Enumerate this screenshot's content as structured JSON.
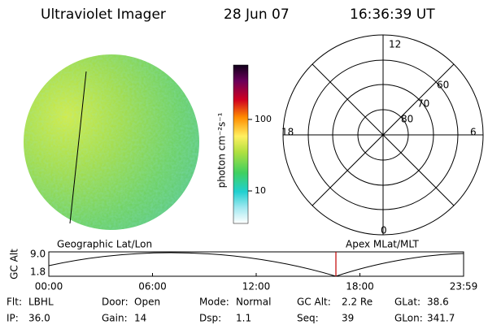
{
  "header": {
    "instrument": "Ultraviolet Imager",
    "date": "28 Jun 07",
    "time": "16:36:39 UT"
  },
  "colorbar": {
    "label": "photon cm⁻²s⁻¹",
    "ticks": [
      "100",
      "10"
    ]
  },
  "polar": {
    "mlt_labels": [
      "12",
      "6",
      "0",
      "18"
    ],
    "latitude_labels": [
      "60",
      "70",
      "80"
    ]
  },
  "panel_labels": {
    "left": "Geographic Lat/Lon",
    "right": "Apex MLat/MLT"
  },
  "altitude_plot": {
    "axis_label": "GC Alt",
    "yticks": [
      "9.0",
      "1.8"
    ],
    "xticks": [
      "00:00",
      "06:00",
      "12:00",
      "18:00",
      "23:59"
    ]
  },
  "status": [
    [
      {
        "label": "Flt:",
        "value": "LBHL"
      },
      {
        "label": "Door:",
        "value": "Open"
      },
      {
        "label": "Mode:",
        "value": "Normal"
      },
      {
        "label": "GC Alt:",
        "value": "2.2 Re"
      },
      {
        "label": "GLat:",
        "value": "38.6"
      }
    ],
    [
      {
        "label": "IP:",
        "value": "36.0"
      },
      {
        "label": "Gain:",
        "value": "14"
      },
      {
        "label": "Dsp:",
        "value": "1.1"
      },
      {
        "label": "Seq:",
        "value": "39"
      },
      {
        "label": "GLon:",
        "value": "341.7"
      }
    ]
  ]
}
